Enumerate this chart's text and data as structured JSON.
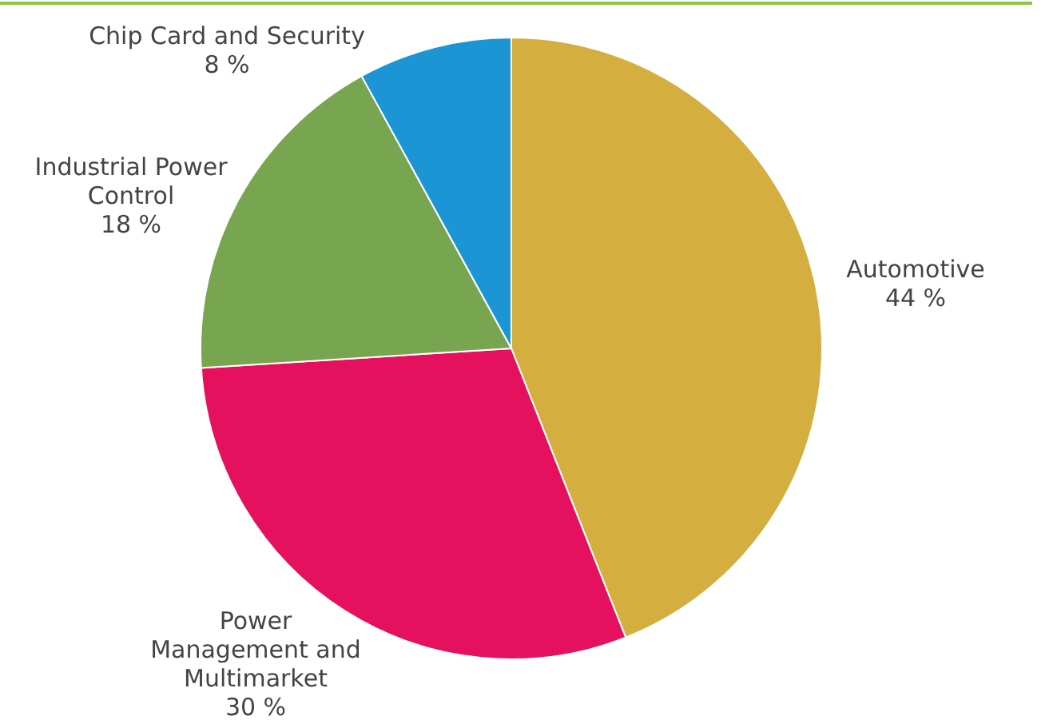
{
  "chart_data": {
    "type": "pie",
    "categories": [
      "Automotive",
      "Power\nManagement and\nMultimarket",
      "Industrial Power\nControl",
      "Chip Card and Security"
    ],
    "values": [
      44,
      30,
      18,
      8
    ],
    "value_labels": [
      "44 %",
      "30 %",
      "18 %",
      "8 %"
    ],
    "colors": [
      "#d4ae3f",
      "#e5115f",
      "#78a550",
      "#1b95d3"
    ],
    "legend": false
  }
}
